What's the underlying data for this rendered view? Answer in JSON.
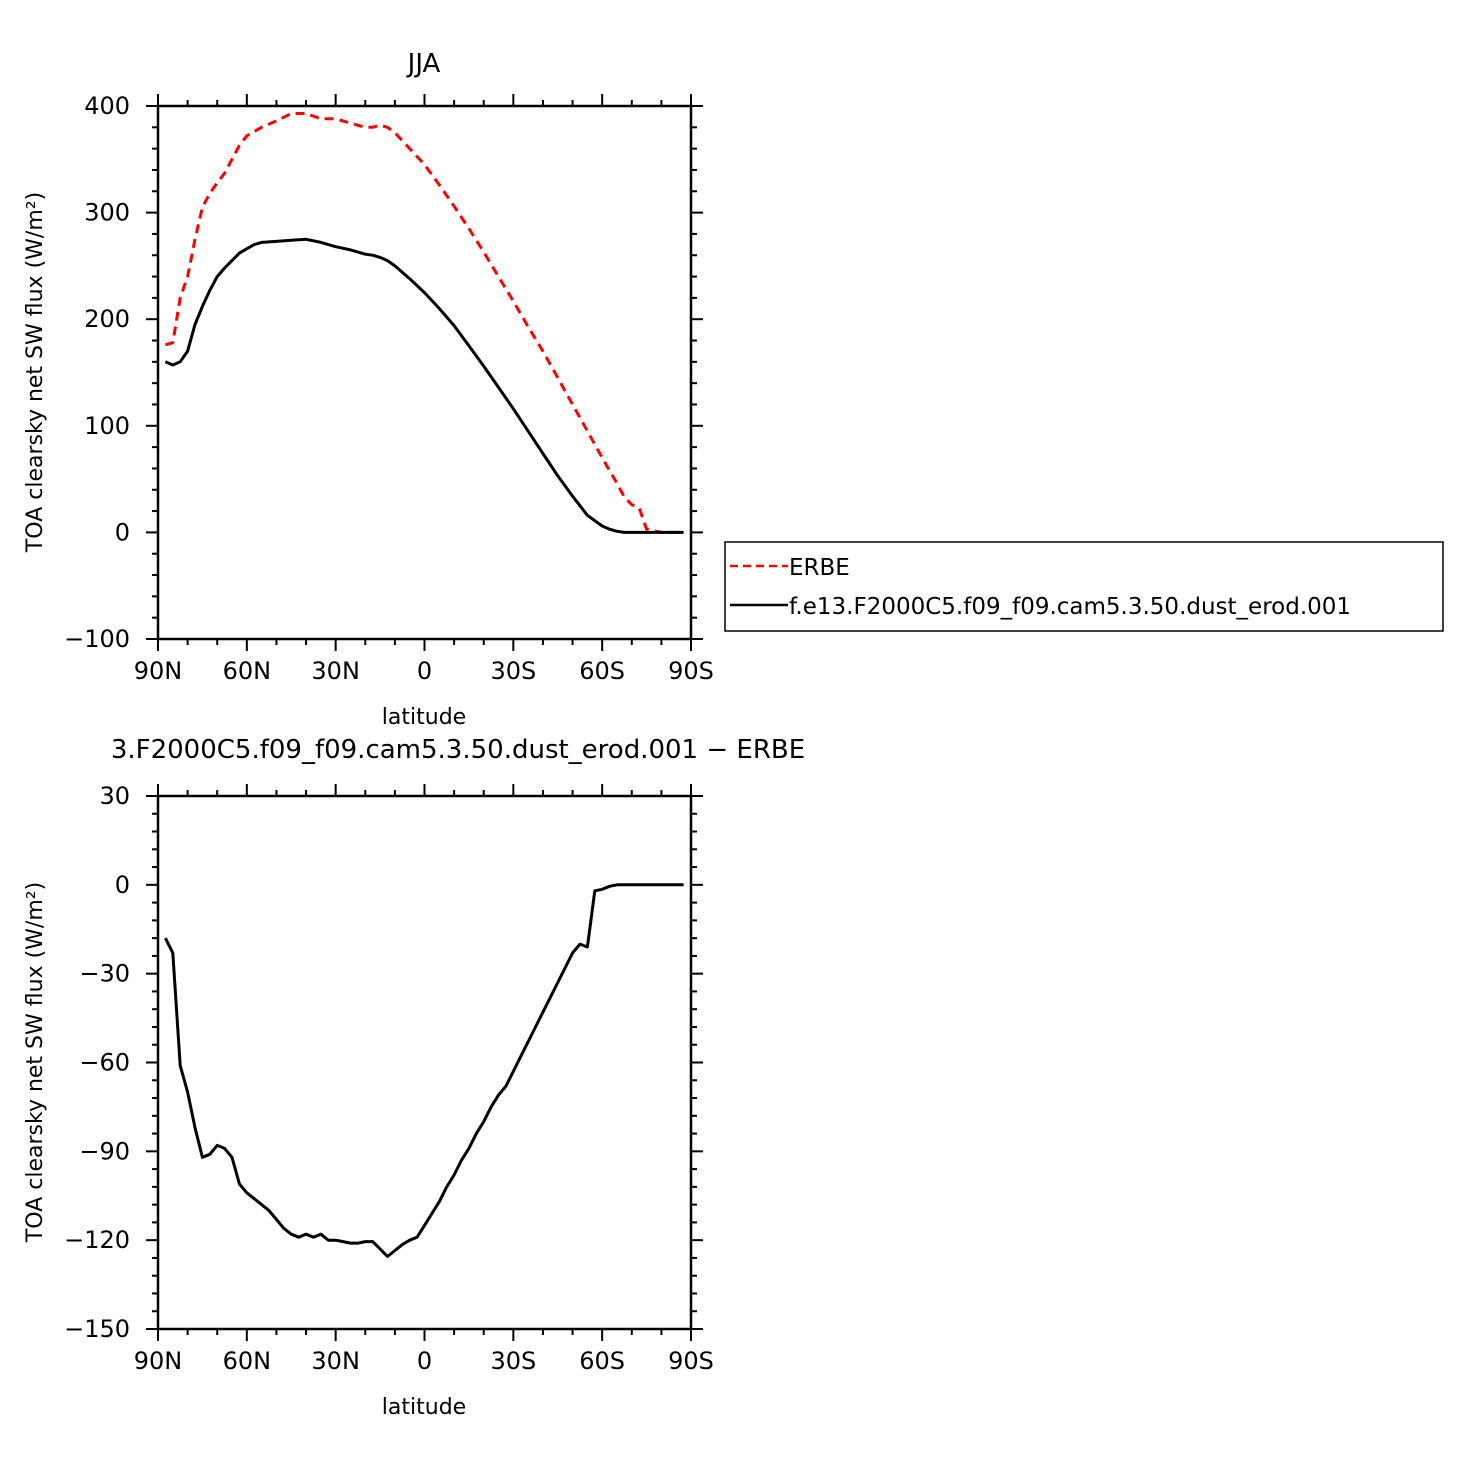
{
  "colors": {
    "erbe": "#ff0000",
    "model": "#000000"
  },
  "chart_data": [
    {
      "type": "line",
      "title": "JJA",
      "xlabel": "latitude",
      "ylabel": "TOA clearsky net SW flux (W/m²)",
      "xlim": [
        90,
        -90
      ],
      "ylim": [
        -100,
        400
      ],
      "xticks": [
        {
          "value": 90,
          "label": "90N"
        },
        {
          "value": 60,
          "label": "60N"
        },
        {
          "value": 30,
          "label": "30N"
        },
        {
          "value": 0,
          "label": "0"
        },
        {
          "value": -30,
          "label": "30S"
        },
        {
          "value": -60,
          "label": "60S"
        },
        {
          "value": -90,
          "label": "90S"
        }
      ],
      "yticks": [
        {
          "value": 400,
          "label": "400"
        },
        {
          "value": 300,
          "label": "300"
        },
        {
          "value": 200,
          "label": "200"
        },
        {
          "value": 100,
          "label": "100"
        },
        {
          "value": 0,
          "label": "0"
        },
        {
          "value": -100,
          "label": "−100"
        }
      ],
      "legend": {
        "position": "right"
      },
      "series": [
        {
          "name": "ERBE",
          "color": "#ff0000",
          "style": "dashed",
          "x": [
            87.5,
            85,
            82.5,
            80,
            77.5,
            75,
            72.5,
            70,
            67.5,
            65,
            62.5,
            60,
            57.5,
            55,
            50,
            45,
            40,
            35,
            30,
            25,
            20,
            17.5,
            15,
            12.5,
            10,
            5,
            0,
            -5,
            -10,
            -15,
            -20,
            -25,
            -30,
            -35,
            -40,
            -45,
            -50,
            -55,
            -60,
            -62.5,
            -65,
            -67.5,
            -70,
            -72.5,
            -75,
            -80,
            -85,
            -87.5
          ],
          "y": [
            176,
            178,
            220,
            240,
            275,
            305,
            318,
            328,
            337,
            350,
            363,
            372,
            376,
            380,
            386,
            393,
            393,
            388,
            388,
            384,
            380,
            380,
            382,
            380,
            375,
            360,
            345,
            326,
            306,
            285,
            263,
            240,
            217,
            193,
            170,
            145,
            120,
            95,
            70,
            58,
            46,
            33,
            26,
            23,
            3,
            0,
            0,
            0
          ]
        },
        {
          "name": "f.e13.F2000C5.f09_f09.cam5.3.50.dust_erod.001",
          "color": "#000000",
          "style": "solid",
          "x": [
            87.5,
            85,
            82.5,
            80,
            77.5,
            75,
            72.5,
            70,
            67.5,
            65,
            62.5,
            60,
            57.5,
            55,
            50,
            45,
            40,
            35,
            30,
            25,
            20,
            17.5,
            15,
            12.5,
            10,
            5,
            0,
            -5,
            -10,
            -15,
            -20,
            -25,
            -30,
            -35,
            -40,
            -45,
            -50,
            -55,
            -60,
            -62.5,
            -65,
            -67.5,
            -70,
            -72.5,
            -75,
            -80,
            -85,
            -87.5
          ],
          "y": [
            160,
            157,
            160,
            170,
            195,
            212,
            227,
            240,
            248,
            255,
            262,
            266,
            270,
            272,
            273,
            274,
            275,
            272,
            268,
            265,
            261,
            260,
            258,
            255,
            250,
            238,
            225,
            210,
            194,
            175,
            156,
            136,
            116,
            95,
            74,
            53,
            34,
            16,
            6,
            3,
            1,
            0,
            0,
            0,
            0,
            0,
            0,
            0
          ]
        }
      ]
    },
    {
      "type": "line",
      "title": "3.F2000C5.f09_f09.cam5.3.50.dust_erod.001 − ERBE",
      "xlabel": "latitude",
      "ylabel": "TOA clearsky net SW flux (W/m²)",
      "xlim": [
        90,
        -90
      ],
      "ylim": [
        -150,
        30
      ],
      "xticks": [
        {
          "value": 90,
          "label": "90N"
        },
        {
          "value": 60,
          "label": "60N"
        },
        {
          "value": 30,
          "label": "30N"
        },
        {
          "value": 0,
          "label": "0"
        },
        {
          "value": -30,
          "label": "30S"
        },
        {
          "value": -60,
          "label": "60S"
        },
        {
          "value": -90,
          "label": "90S"
        }
      ],
      "yticks": [
        {
          "value": 30,
          "label": "30"
        },
        {
          "value": 0,
          "label": "0"
        },
        {
          "value": -30,
          "label": "−30"
        },
        {
          "value": -60,
          "label": "−60"
        },
        {
          "value": -90,
          "label": "−90"
        },
        {
          "value": -120,
          "label": "−120"
        },
        {
          "value": -150,
          "label": "−150"
        }
      ],
      "series": [
        {
          "color": "#000000",
          "style": "solid",
          "x": [
            87.5,
            85,
            82.5,
            80,
            77.5,
            75,
            72.5,
            70,
            67.5,
            65,
            62.5,
            60,
            57.5,
            55,
            52.5,
            50,
            47.5,
            45,
            42.5,
            40,
            37.5,
            35,
            32.5,
            30,
            27.5,
            25,
            22.5,
            20,
            17.5,
            15,
            12.5,
            10,
            7.5,
            5,
            2.5,
            0,
            -2.5,
            -5,
            -7.5,
            -10,
            -12.5,
            -15,
            -17.5,
            -20,
            -22.5,
            -25,
            -27.5,
            -30,
            -32.5,
            -35,
            -37.5,
            -40,
            -42.5,
            -45,
            -47.5,
            -50,
            -52.5,
            -55,
            -57.5,
            -60,
            -62.5,
            -65,
            -67.5,
            -70,
            -72.5,
            -75,
            -77.5,
            -80,
            -82.5,
            -85,
            -87.5
          ],
          "y": [
            -18,
            -23,
            -61,
            -70,
            -82,
            -92,
            -91,
            -88,
            -89,
            -92,
            -101,
            -104,
            -106,
            -108,
            -110,
            -113,
            -116,
            -118,
            -119,
            -118,
            -119,
            -118,
            -120,
            -120,
            -120.5,
            -121,
            -121,
            -120.5,
            -120.5,
            -123,
            -125.5,
            -123.5,
            -121.5,
            -120,
            -119,
            -115,
            -111,
            -107,
            -102,
            -98,
            -93,
            -89,
            -84,
            -80,
            -75,
            -71,
            -68,
            -63,
            -58,
            -53,
            -48,
            -43,
            -38,
            -33,
            -28,
            -23,
            -20,
            -21,
            -2,
            -1.5,
            -0.5,
            0,
            0,
            0,
            0,
            0,
            0,
            0,
            0,
            0,
            0
          ]
        }
      ]
    }
  ]
}
